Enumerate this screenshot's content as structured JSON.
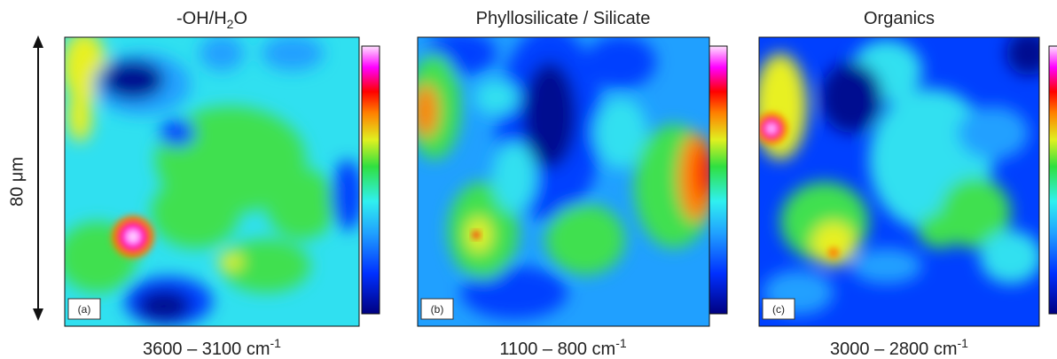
{
  "panels": [
    {
      "title": {
        "main": "-OH/H",
        "sub": "2",
        "end": "O"
      },
      "tag": "(a)",
      "range": {
        "main": "3600 – 3100 cm",
        "sup": "-1"
      }
    },
    {
      "title": {
        "main": "Phyllosilicate / Silicate"
      },
      "tag": "(b)",
      "range": {
        "main": "1100 – 800 cm",
        "sup": "-1"
      }
    },
    {
      "title": {
        "main": "Organics"
      },
      "tag": "(c)",
      "range": {
        "main": "3000 – 2800 cm",
        "sup": "-1"
      }
    }
  ],
  "scale": "80 μm"
}
